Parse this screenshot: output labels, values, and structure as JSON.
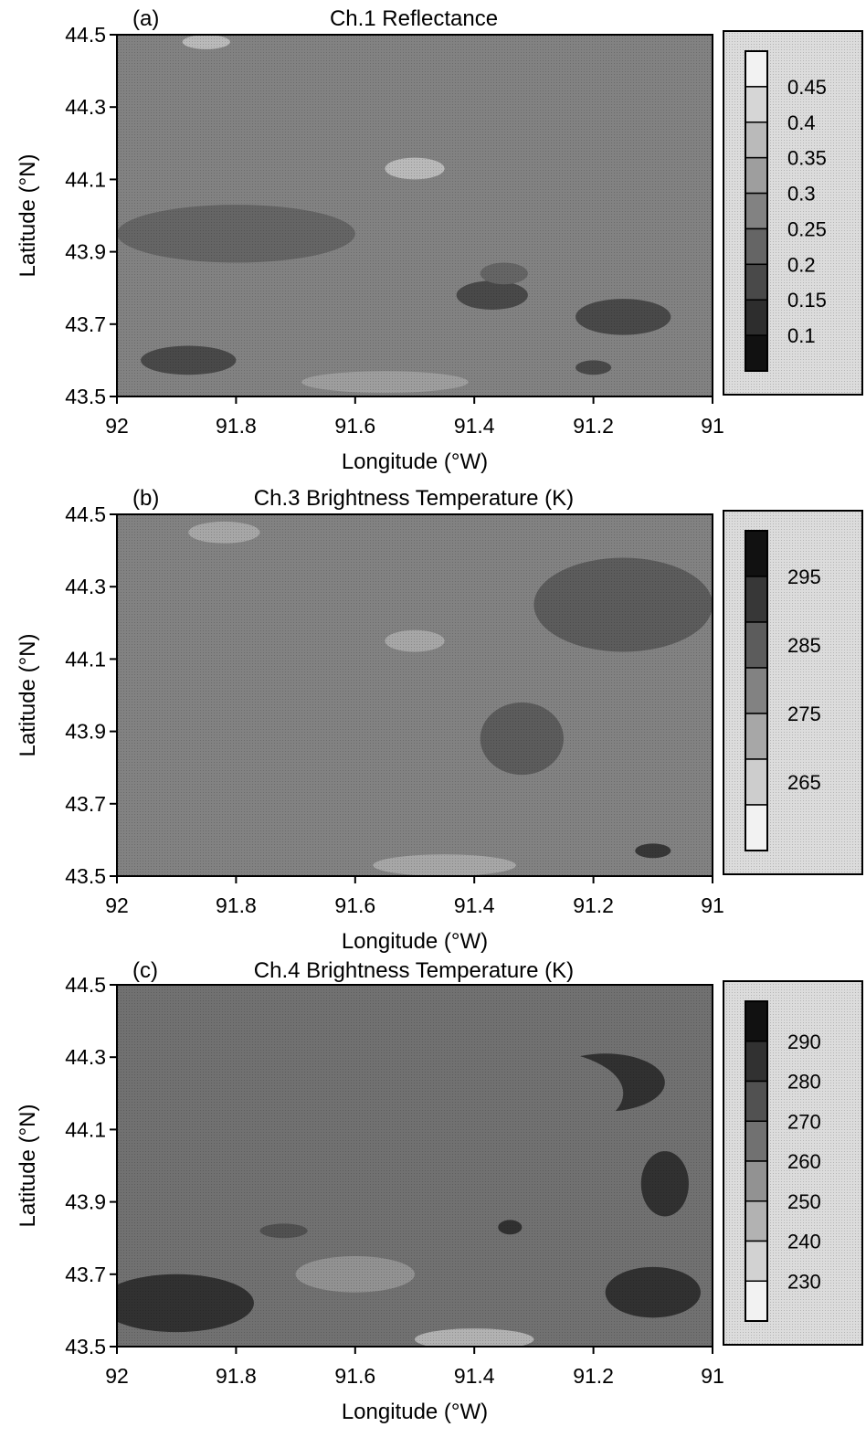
{
  "chart_data": [
    {
      "type": "heatmap",
      "panel": "(a)",
      "title": "Ch.1 Reflectance",
      "xlabel": "Longitude (°W)",
      "ylabel": "Latitude (°N)",
      "xlim": [
        92,
        91
      ],
      "ylim": [
        43.5,
        44.5
      ],
      "x_ticks": [
        "92",
        "91.8",
        "91.6",
        "91.4",
        "91.2",
        "91"
      ],
      "y_ticks": [
        "44.5",
        "44.3",
        "44.1",
        "43.9",
        "43.7",
        "43.5"
      ],
      "colorbar": {
        "levels": [
          "0.45",
          "0.4",
          "0.35",
          "0.3",
          "0.25",
          "0.2",
          "0.15",
          "0.1"
        ],
        "bands": 9,
        "low_color": "#111111",
        "high_color": "#f2f2f2"
      },
      "base_level": 0.25,
      "blobs": [
        {
          "x": 91.88,
          "y": 43.6,
          "rx": 0.08,
          "ry": 0.04,
          "level": 0.17
        },
        {
          "x": 91.37,
          "y": 43.78,
          "rx": 0.06,
          "ry": 0.04,
          "level": 0.19
        },
        {
          "x": 91.35,
          "y": 43.84,
          "rx": 0.04,
          "ry": 0.03,
          "level": 0.2
        },
        {
          "x": 91.15,
          "y": 43.72,
          "rx": 0.08,
          "ry": 0.05,
          "level": 0.19
        },
        {
          "x": 91.2,
          "y": 43.58,
          "rx": 0.03,
          "ry": 0.02,
          "level": 0.17
        },
        {
          "x": 91.5,
          "y": 44.13,
          "rx": 0.05,
          "ry": 0.03,
          "level": 0.36
        },
        {
          "x": 91.85,
          "y": 44.48,
          "rx": 0.04,
          "ry": 0.02,
          "level": 0.37
        },
        {
          "x": 91.55,
          "y": 43.54,
          "rx": 0.14,
          "ry": 0.03,
          "level": 0.31
        },
        {
          "x": 91.8,
          "y": 43.95,
          "rx": 0.2,
          "ry": 0.08,
          "level": 0.24
        },
        {
          "x": 91.2,
          "y": 44.25,
          "rx": 0.15,
          "ry": 0.1,
          "level": 0.27
        }
      ]
    },
    {
      "type": "heatmap",
      "panel": "(b)",
      "title": "Ch.3 Brightness Temperature (K)",
      "xlabel": "Longitude (°W)",
      "ylabel": "Latitude (°N)",
      "xlim": [
        92,
        91
      ],
      "ylim": [
        43.5,
        44.5
      ],
      "x_ticks": [
        "92",
        "91.8",
        "91.6",
        "91.4",
        "91.2",
        "91"
      ],
      "y_ticks": [
        "44.5",
        "44.3",
        "44.1",
        "43.9",
        "43.7",
        "43.5"
      ],
      "colorbar": {
        "levels": [
          "295",
          "285",
          "275",
          "265"
        ],
        "bands": 7,
        "low_color": "#f2f2f2",
        "high_color": "#111111"
      },
      "base_level": 279,
      "blobs": [
        {
          "x": 91.15,
          "y": 44.25,
          "rx": 0.15,
          "ry": 0.13,
          "level": 286
        },
        {
          "x": 91.32,
          "y": 43.88,
          "rx": 0.07,
          "ry": 0.1,
          "level": 285
        },
        {
          "x": 91.15,
          "y": 43.82,
          "rx": 0.08,
          "ry": 0.07,
          "level": 284
        },
        {
          "x": 91.1,
          "y": 43.57,
          "rx": 0.03,
          "ry": 0.02,
          "level": 294
        },
        {
          "x": 91.85,
          "y": 43.74,
          "rx": 0.15,
          "ry": 0.06,
          "level": 283
        },
        {
          "x": 91.62,
          "y": 43.82,
          "rx": 0.12,
          "ry": 0.06,
          "level": 283
        },
        {
          "x": 91.5,
          "y": 44.15,
          "rx": 0.05,
          "ry": 0.03,
          "level": 269
        },
        {
          "x": 91.82,
          "y": 44.45,
          "rx": 0.06,
          "ry": 0.03,
          "level": 271
        },
        {
          "x": 91.45,
          "y": 43.53,
          "rx": 0.12,
          "ry": 0.03,
          "level": 272
        },
        {
          "x": 91.6,
          "y": 44.25,
          "rx": 0.08,
          "ry": 0.04,
          "level": 283
        }
      ]
    },
    {
      "type": "heatmap",
      "panel": "(c)",
      "title": "Ch.4 Brightness Temperature (K)",
      "xlabel": "Longitude (°W)",
      "ylabel": "Latitude (°N)",
      "xlim": [
        92,
        91
      ],
      "ylim": [
        43.5,
        44.5
      ],
      "x_ticks": [
        "92",
        "91.8",
        "91.6",
        "91.4",
        "91.2",
        "91"
      ],
      "y_ticks": [
        "44.5",
        "44.3",
        "44.1",
        "43.9",
        "43.7",
        "43.5"
      ],
      "colorbar": {
        "levels": [
          "290",
          "280",
          "270",
          "260",
          "250",
          "240",
          "230"
        ],
        "bands": 8,
        "low_color": "#f2f2f2",
        "high_color": "#111111"
      },
      "base_level": 265,
      "blobs": [
        {
          "x": 91.9,
          "y": 43.62,
          "rx": 0.13,
          "ry": 0.08,
          "level": 292
        },
        {
          "x": 91.18,
          "y": 44.23,
          "rx": 0.1,
          "ry": 0.08,
          "level": 291
        },
        {
          "x": 91.08,
          "y": 43.95,
          "rx": 0.04,
          "ry": 0.09,
          "level": 290
        },
        {
          "x": 91.1,
          "y": 43.65,
          "rx": 0.08,
          "ry": 0.07,
          "level": 289
        },
        {
          "x": 91.34,
          "y": 43.83,
          "rx": 0.02,
          "ry": 0.02,
          "level": 290
        },
        {
          "x": 91.72,
          "y": 43.82,
          "rx": 0.04,
          "ry": 0.02,
          "level": 282
        },
        {
          "x": 91.3,
          "y": 44.2,
          "rx": 0.15,
          "ry": 0.12,
          "level": 270
        },
        {
          "x": 91.55,
          "y": 44.35,
          "rx": 0.18,
          "ry": 0.08,
          "level": 262
        },
        {
          "x": 91.4,
          "y": 43.52,
          "rx": 0.1,
          "ry": 0.03,
          "level": 245
        },
        {
          "x": 91.6,
          "y": 43.7,
          "rx": 0.1,
          "ry": 0.05,
          "level": 258
        }
      ]
    }
  ]
}
